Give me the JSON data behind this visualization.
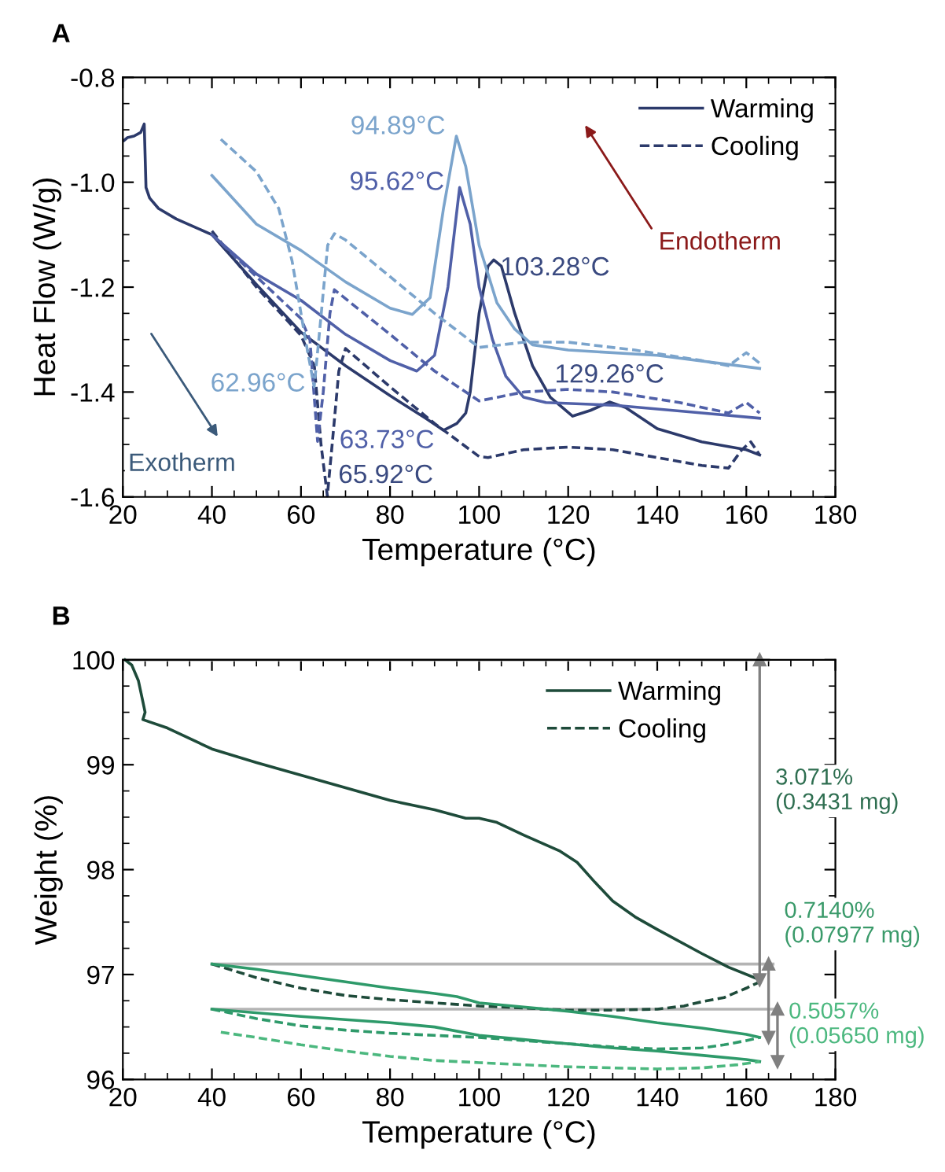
{
  "chart_data": [
    {
      "type": "line",
      "title": "A",
      "xlabel": "Temperature (°C)",
      "ylabel": "Heat Flow (W/g)",
      "xlim": [
        20,
        180
      ],
      "xticks": [
        20,
        40,
        60,
        80,
        100,
        120,
        140,
        160,
        180
      ],
      "ylim": [
        -1.6,
        -0.8
      ],
      "yticks": [
        {
          "value": -1.6,
          "label": "-1.6"
        },
        {
          "value": -1.4,
          "label": "-1.4"
        },
        {
          "value": -1.2,
          "label": "-1.2"
        },
        {
          "value": -1.0,
          "label": "-1.0"
        },
        {
          "value": -0.8,
          "label": "-0.8"
        }
      ],
      "grid": false,
      "legend": "top right",
      "series": [
        {
          "name": "Warming",
          "color": "#2c3a6b",
          "line_style": "solid",
          "x": [
            20.3,
            21,
            22.5,
            24,
            24.8,
            25.2,
            26,
            28,
            32,
            36,
            40,
            50,
            60,
            70,
            80,
            88,
            92,
            95,
            97,
            98,
            100,
            102,
            103.28,
            105,
            108,
            112,
            116,
            121,
            125,
            129.26,
            133,
            140,
            150,
            160,
            163
          ],
          "values": [
            -0.92,
            -0.915,
            -0.912,
            -0.905,
            -0.889,
            -1.01,
            -1.03,
            -1.05,
            -1.07,
            -1.085,
            -1.1,
            -1.195,
            -1.286,
            -1.35,
            -1.407,
            -1.45,
            -1.473,
            -1.46,
            -1.44,
            -1.4,
            -1.25,
            -1.16,
            -1.148,
            -1.16,
            -1.25,
            -1.35,
            -1.41,
            -1.446,
            -1.435,
            -1.419,
            -1.43,
            -1.47,
            -1.495,
            -1.51,
            -1.52
          ]
        },
        {
          "name": "Cooling",
          "color": "#2c3a6b",
          "line_style": "dashed",
          "x": [
            40,
            50,
            60,
            63,
            64.5,
            65.92,
            67,
            68.5,
            70,
            80,
            90,
            100,
            102,
            110,
            120,
            130,
            140,
            150,
            156,
            159,
            161,
            163
          ],
          "values": [
            -1.093,
            -1.2,
            -1.292,
            -1.35,
            -1.5,
            -1.598,
            -1.5,
            -1.36,
            -1.317,
            -1.39,
            -1.46,
            -1.523,
            -1.525,
            -1.51,
            -1.505,
            -1.51,
            -1.525,
            -1.54,
            -1.545,
            -1.51,
            -1.495,
            -1.52
          ]
        },
        {
          "color": "#5060a8",
          "line_style": "solid",
          "x": [
            40,
            50,
            60,
            70,
            80,
            86,
            90,
            93,
            95.62,
            98,
            100,
            103,
            106,
            110,
            115,
            130,
            150,
            163
          ],
          "values": [
            -1.1,
            -1.175,
            -1.225,
            -1.29,
            -1.34,
            -1.36,
            -1.33,
            -1.2,
            -1.01,
            -1.08,
            -1.2,
            -1.3,
            -1.37,
            -1.41,
            -1.42,
            -1.425,
            -1.44,
            -1.45
          ]
        },
        {
          "color": "#5060a8",
          "line_style": "dashed",
          "x": [
            40,
            50,
            60,
            62,
            63.73,
            65,
            66.5,
            67.5,
            80,
            90,
            100,
            110,
            120,
            130,
            145,
            156,
            160,
            163
          ],
          "values": [
            -1.1,
            -1.18,
            -1.26,
            -1.3,
            -1.494,
            -1.4,
            -1.25,
            -1.205,
            -1.29,
            -1.36,
            -1.417,
            -1.4,
            -1.395,
            -1.4,
            -1.42,
            -1.44,
            -1.42,
            -1.44
          ]
        },
        {
          "color": "#7ba4cc",
          "line_style": "solid",
          "x": [
            40,
            50,
            60,
            70,
            80,
            85,
            89,
            92,
            94.89,
            97,
            100,
            104,
            108,
            112,
            120,
            140,
            163
          ],
          "values": [
            -0.987,
            -1.08,
            -1.13,
            -1.19,
            -1.24,
            -1.252,
            -1.22,
            -1.05,
            -0.912,
            -0.97,
            -1.12,
            -1.23,
            -1.28,
            -1.31,
            -1.32,
            -1.33,
            -1.355
          ]
        },
        {
          "color": "#7ba4cc",
          "line_style": "dashed",
          "x": [
            42,
            50,
            55,
            58,
            61,
            62.96,
            64,
            66,
            67.5,
            70,
            80,
            90,
            100,
            110,
            120,
            135,
            150,
            156,
            160,
            163
          ],
          "values": [
            -0.918,
            -0.98,
            -1.05,
            -1.15,
            -1.3,
            -1.39,
            -1.3,
            -1.12,
            -1.098,
            -1.11,
            -1.18,
            -1.25,
            -1.315,
            -1.305,
            -1.305,
            -1.32,
            -1.34,
            -1.35,
            -1.325,
            -1.345
          ]
        }
      ],
      "annotations": [
        {
          "text": "94.89°C",
          "x": 94.89,
          "y": -0.912
        },
        {
          "text": "95.62°C",
          "x": 95.62,
          "y": -1.01
        },
        {
          "text": "103.28°C",
          "x": 103.28,
          "y": -1.148
        },
        {
          "text": "129.26°C",
          "x": 129.26,
          "y": -1.419
        },
        {
          "text": "62.96°C",
          "x": 62.96,
          "y": -1.39
        },
        {
          "text": "63.73°C",
          "x": 63.73,
          "y": -1.494
        },
        {
          "text": "65.92°C",
          "x": 65.92,
          "y": -1.598
        },
        "Endotherm",
        "Exotherm"
      ]
    },
    {
      "type": "line",
      "title": "B",
      "xlabel": "Temperature (°C)",
      "ylabel": "Weight (%)",
      "xlim": [
        20,
        180
      ],
      "xticks": [
        20,
        40,
        60,
        80,
        100,
        120,
        140,
        160,
        180
      ],
      "ylim": [
        96,
        100
      ],
      "yticks": [
        96,
        97,
        98,
        99,
        100
      ],
      "grid": false,
      "legend": "top right",
      "series": [
        {
          "color": "#b4b4b4",
          "line_style": "solid",
          "x": [
            20.5,
            165
          ],
          "values": [
            100,
            100
          ]
        },
        {
          "color": "#b4b4b4",
          "line_style": "solid",
          "x": [
            40,
            166
          ],
          "values": [
            97.1,
            97.1
          ]
        },
        {
          "color": "#b4b4b4",
          "line_style": "solid",
          "x": [
            40,
            167
          ],
          "values": [
            96.67,
            96.67
          ]
        },
        {
          "name": "Warming",
          "color": "#1e4b3a",
          "line_style": "solid",
          "x": [
            20.5,
            22,
            23.5,
            24.5,
            25,
            24.5,
            30,
            40,
            50,
            60,
            70,
            80,
            90,
            97,
            100,
            104,
            110,
            118,
            122,
            126,
            130,
            135,
            140,
            150,
            156,
            163
          ],
          "values": [
            100.0,
            99.95,
            99.8,
            99.6,
            99.5,
            99.43,
            99.35,
            99.15,
            99.02,
            98.9,
            98.78,
            98.66,
            98.57,
            98.49,
            98.49,
            98.45,
            98.33,
            98.18,
            98.07,
            97.88,
            97.7,
            97.55,
            97.43,
            97.2,
            97.07,
            96.95
          ]
        },
        {
          "name": "Cooling",
          "color": "#1e4b3a",
          "line_style": "dashed",
          "x": [
            40,
            50,
            60,
            70,
            80,
            90,
            100,
            110,
            120,
            130,
            140,
            146,
            150,
            155,
            160,
            163
          ],
          "values": [
            97.1,
            96.97,
            96.87,
            96.8,
            96.76,
            96.73,
            96.7,
            96.68,
            96.66,
            96.66,
            96.67,
            96.7,
            96.74,
            96.78,
            96.87,
            96.93
          ]
        },
        {
          "color": "#2e9a6a",
          "line_style": "solid",
          "x": [
            40,
            50,
            60,
            70,
            80,
            90,
            95,
            100,
            110,
            120,
            130,
            140,
            150,
            160,
            163
          ],
          "values": [
            97.1,
            97.05,
            96.99,
            96.93,
            96.87,
            96.82,
            96.79,
            96.73,
            96.69,
            96.65,
            96.6,
            96.54,
            96.49,
            96.43,
            96.4
          ]
        },
        {
          "color": "#2e9a6a",
          "line_style": "dashed",
          "x": [
            40,
            50,
            60,
            70,
            80,
            90,
            100,
            110,
            120,
            130,
            140,
            150,
            155,
            160,
            163
          ],
          "values": [
            96.67,
            96.58,
            96.51,
            96.47,
            96.44,
            96.42,
            96.4,
            96.37,
            96.34,
            96.31,
            96.29,
            96.3,
            96.33,
            96.37,
            96.4
          ]
        },
        {
          "color": "#2e9a6a",
          "line_style": "solid",
          "x": [
            40,
            60,
            80,
            90,
            100,
            110,
            120,
            130,
            140,
            150,
            160,
            163
          ],
          "values": [
            96.67,
            96.6,
            96.54,
            96.5,
            96.42,
            96.38,
            96.34,
            96.3,
            96.27,
            96.23,
            96.19,
            96.17
          ]
        },
        {
          "color": "#4cb87f",
          "line_style": "dashed",
          "x": [
            42,
            50,
            60,
            70,
            80,
            90,
            100,
            110,
            120,
            130,
            140,
            150,
            158,
            163
          ],
          "values": [
            96.45,
            96.4,
            96.33,
            96.27,
            96.22,
            96.18,
            96.16,
            96.14,
            96.12,
            96.11,
            96.1,
            96.11,
            96.14,
            96.17
          ]
        },
        {
          "color": "#808080",
          "line_style": "solid",
          "marker": "triangle",
          "x": [
            163,
            163
          ],
          "values": [
            100,
            96.95
          ]
        },
        {
          "color": "#808080",
          "line_style": "solid",
          "marker": "triangle",
          "x": [
            165,
            165
          ],
          "values": [
            97.1,
            96.4
          ]
        },
        {
          "color": "#808080",
          "line_style": "solid",
          "marker": "triangle",
          "x": [
            167,
            167
          ],
          "values": [
            96.67,
            96.17
          ]
        }
      ],
      "annotations": [
        "3.071%\n(0.3431 mg)",
        "0.7140%\n(0.07977 mg)",
        "0.5057%\n(0.05650 mg)"
      ]
    }
  ]
}
